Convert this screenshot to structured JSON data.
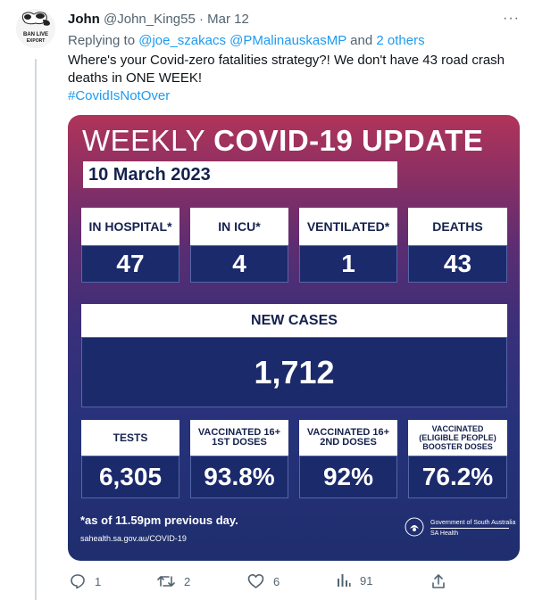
{
  "tweet": {
    "author_name": "John",
    "author_handle": "@John_King55",
    "separator": "·",
    "date": "Mar 12",
    "more_label": "···",
    "replying_prefix": "Replying to ",
    "reply_user1": "@joe_szakacs",
    "reply_user2": "@PMalinauskasMP",
    "reply_and": " and ",
    "reply_others": "2 others",
    "text": "Where's your Covid-zero fatalities strategy?! We don't have 43 road crash deaths in ONE WEEK!",
    "hashtag": "#CovidIsNotOver"
  },
  "avatar": {
    "text_line1": "BAN LIVE",
    "text_line2": "EXPORT"
  },
  "card": {
    "title_light": "WEEKLY ",
    "title_bold": "COVID-19 UPDATE",
    "date": "10 March 2023",
    "stats": [
      {
        "label": "IN HOSPITAL*",
        "value": "47"
      },
      {
        "label": "IN ICU*",
        "value": "4"
      },
      {
        "label": "VENTILATED*",
        "value": "1"
      },
      {
        "label": "DEATHS",
        "value": "43"
      }
    ],
    "new_cases": {
      "label": "NEW CASES",
      "value": "1,712"
    },
    "bottom_stats": [
      {
        "label": "TESTS",
        "value": "6,305"
      },
      {
        "label": "VACCINATED 16+\n1ST DOSES",
        "value": "93.8%"
      },
      {
        "label": "VACCINATED 16+\n2ND DOSES",
        "value": "92%"
      },
      {
        "label": "VACCINATED\n(ELIGIBLE PEOPLE)\nBOOSTER DOSES",
        "value": "76.2%"
      }
    ],
    "note": "*as of 11.59pm previous day.",
    "site": "sahealth.sa.gov.au/COVID-19",
    "gov_line1": "Government of South Australia",
    "gov_line2": "SA Health"
  },
  "actions": {
    "replies": "1",
    "retweets": "2",
    "likes": "6",
    "views": "91"
  },
  "colors": {
    "link": "#1d9bf0",
    "muted": "#536471",
    "card_navy": "#15214d"
  }
}
